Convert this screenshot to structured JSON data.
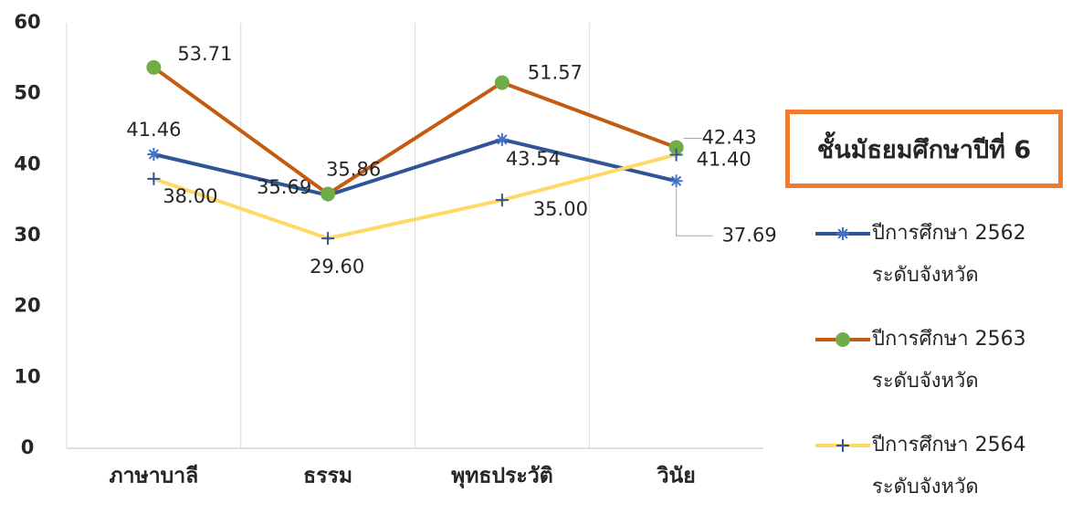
{
  "chart_data": {
    "type": "line",
    "annotation": "ชั้นมัธยมศึกษาปีที่ 6",
    "categories": [
      "ภาษาบาลี",
      "ธรรม",
      "พุทธประวัติ",
      "วินัย"
    ],
    "ylim": [
      0,
      60
    ],
    "yticks": [
      0,
      10,
      20,
      30,
      40,
      50,
      60
    ],
    "grid": "vertical",
    "legend": "right",
    "series": [
      {
        "name": "ปีการศึกษา 2562 ระดับจังหวัด",
        "color": "#2f5597",
        "marker": "asterisk",
        "marker_color": "#4472c4",
        "values": [
          41.46,
          35.69,
          43.54,
          37.69
        ],
        "value_labels": [
          "41.46",
          "35.69",
          "43.54",
          "37.69"
        ]
      },
      {
        "name": "ปีการศึกษา 2563 ระดับจังหวัด",
        "color": "#c55a11",
        "marker": "circle",
        "marker_color": "#70ad47",
        "values": [
          53.71,
          35.86,
          51.57,
          42.43
        ],
        "value_labels": [
          "53.71",
          "35.86",
          "51.57",
          "42.43"
        ]
      },
      {
        "name": "ปีการศึกษา 2564 ระดับจังหวัด",
        "color": "#ffd966",
        "marker": "plus",
        "marker_color": "#2f5597",
        "values": [
          38.0,
          29.6,
          35.0,
          41.4
        ],
        "value_labels": [
          "38.00",
          "29.60",
          "35.00",
          "41.40"
        ]
      }
    ]
  }
}
